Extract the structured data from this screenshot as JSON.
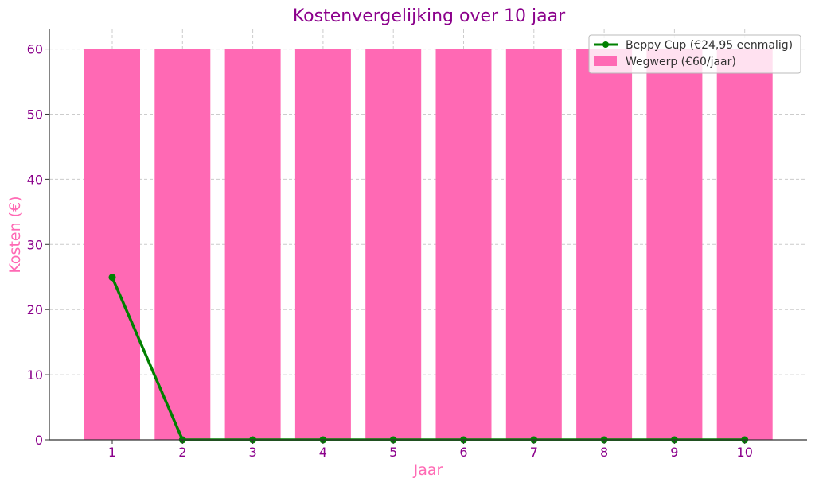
{
  "chart_data": {
    "type": "bar",
    "title": "Kostenvergelijking over 10 jaar",
    "xlabel": "Jaar",
    "ylabel": "Kosten (€)",
    "categories": [
      "1",
      "2",
      "3",
      "4",
      "5",
      "6",
      "7",
      "8",
      "9",
      "10"
    ],
    "ylim": [
      0,
      63
    ],
    "yticks": [
      0,
      10,
      20,
      30,
      40,
      50,
      60
    ],
    "grid": true,
    "legend_position": "top-right",
    "series": [
      {
        "name": "Wegwerp (€60/jaar)",
        "type": "bar",
        "color": "#ff69b4",
        "values": [
          60,
          60,
          60,
          60,
          60,
          60,
          60,
          60,
          60,
          60
        ]
      },
      {
        "name": "Beppy Cup (€24,95 eenmalig)",
        "type": "line",
        "color": "#008000",
        "values": [
          24.95,
          0,
          0,
          0,
          0,
          0,
          0,
          0,
          0,
          0
        ]
      }
    ]
  }
}
